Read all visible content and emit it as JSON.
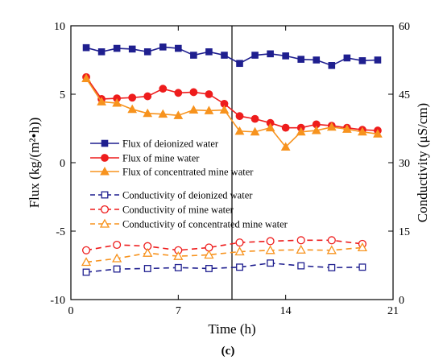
{
  "chart_data": {
    "type": "line",
    "caption": "(c)",
    "xlabel": "Time  (h)",
    "ylabel_left": "Flux  (kg/(m²•h))",
    "ylabel_right": "Conductivity  (μS/cm)",
    "xlim": [
      0,
      21
    ],
    "ylim_left": [
      -10,
      10
    ],
    "ylim_right": [
      0,
      60
    ],
    "xticks": [
      0,
      7,
      14,
      21
    ],
    "yticks_left": [
      -10,
      -5,
      0,
      5,
      10
    ],
    "yticks_right": [
      0,
      15,
      30,
      45,
      60
    ],
    "vline_x": 10.5,
    "grid": false,
    "legend_position": "center-left",
    "series": [
      {
        "name": "Flux of deionized water",
        "axis": "left",
        "color": "#1f1f8f",
        "marker": "square",
        "filled": true,
        "dashed": false,
        "x": [
          1,
          2,
          3,
          4,
          5,
          6,
          7,
          8,
          9,
          10,
          11,
          12,
          13,
          14,
          15,
          16,
          17,
          18,
          19,
          20
        ],
        "y": [
          8.4,
          8.1,
          8.35,
          8.3,
          8.1,
          8.45,
          8.35,
          7.85,
          8.1,
          7.85,
          7.25,
          7.85,
          7.95,
          7.8,
          7.55,
          7.5,
          7.1,
          7.65,
          7.45,
          7.5
        ]
      },
      {
        "name": "Flux of mine water",
        "axis": "left",
        "color": "#ee1c1c",
        "marker": "circle",
        "filled": true,
        "dashed": false,
        "x": [
          1,
          2,
          3,
          4,
          5,
          6,
          7,
          8,
          9,
          10,
          11,
          12,
          13,
          14,
          15,
          16,
          17,
          18,
          19,
          20
        ],
        "y": [
          6.25,
          4.65,
          4.7,
          4.75,
          4.85,
          5.4,
          5.1,
          5.15,
          5.0,
          4.3,
          3.4,
          3.2,
          2.9,
          2.55,
          2.55,
          2.8,
          2.7,
          2.55,
          2.4,
          2.35
        ]
      },
      {
        "name": "Flux of concentrated mine water",
        "axis": "left",
        "color": "#f7931e",
        "marker": "triangle",
        "filled": true,
        "dashed": false,
        "x": [
          1,
          2,
          3,
          4,
          5,
          6,
          7,
          8,
          9,
          10,
          11,
          12,
          13,
          14,
          15,
          16,
          17,
          18,
          19,
          20
        ],
        "y": [
          6.15,
          4.45,
          4.35,
          3.9,
          3.6,
          3.55,
          3.45,
          3.85,
          3.8,
          3.85,
          2.3,
          2.25,
          2.55,
          1.15,
          2.25,
          2.35,
          2.6,
          2.45,
          2.25,
          2.1
        ]
      },
      {
        "name": "Conductivity of deionized water",
        "axis": "right",
        "color": "#1f1f8f",
        "marker": "square",
        "filled": false,
        "dashed": true,
        "x": [
          1,
          3,
          5,
          7,
          9,
          11,
          13,
          15,
          17,
          19
        ],
        "y": [
          6.0,
          6.7,
          6.8,
          7.0,
          6.8,
          7.1,
          8.0,
          7.4,
          7.0,
          7.1
        ]
      },
      {
        "name": "Conductivity of mine water",
        "axis": "right",
        "color": "#ee1c1c",
        "marker": "circle",
        "filled": false,
        "dashed": true,
        "x": [
          1,
          3,
          5,
          7,
          9,
          11,
          13,
          15,
          17,
          19
        ],
        "y": [
          10.8,
          12.0,
          11.7,
          10.8,
          11.4,
          12.5,
          12.8,
          13.0,
          13.0,
          12.2
        ]
      },
      {
        "name": "Conductivity of concentrated mine water",
        "axis": "right",
        "color": "#f7931e",
        "marker": "triangle",
        "filled": false,
        "dashed": true,
        "x": [
          1,
          3,
          5,
          7,
          9,
          11,
          13,
          15,
          17,
          19
        ],
        "y": [
          8.2,
          9.0,
          10.2,
          9.5,
          9.8,
          10.5,
          10.8,
          10.9,
          10.8,
          11.4
        ]
      }
    ]
  }
}
